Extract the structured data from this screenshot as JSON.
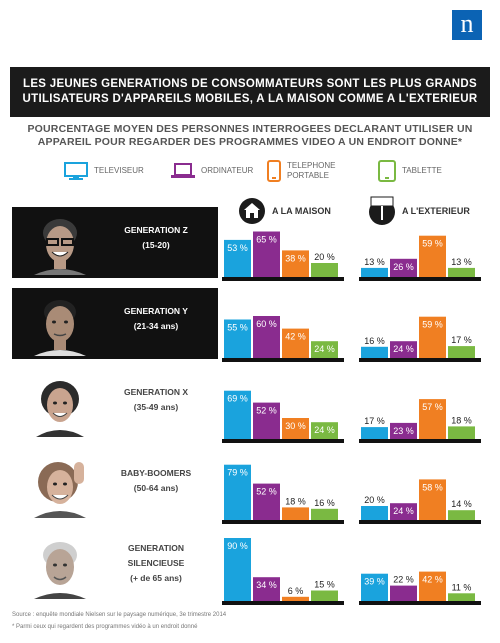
{
  "logo": "n",
  "banner": {
    "line1": "LES JEUNES GENERATIONS DE CONSOMMATEURS SONT LES PLUS GRANDS",
    "line2": "UTILISATEURS D'APPAREILS MOBILES, A LA MAISON COMME A L'EXTERIEUR"
  },
  "subtitle": {
    "line1": "POURCENTAGE MOYEN DES PERSONNES INTERROGEES DECLARANT UTILISER UN",
    "line2": "APPAREIL POUR REGARDER DES PROGRAMMES VIDEO A UN ENDROIT DONNE*"
  },
  "legend": {
    "tv": "TELEVISEUR",
    "computer": "ORDINATEUR",
    "phone_line1": "TELEPHONE",
    "phone_line2": "PORTABLE",
    "tablet": "TABLETTE"
  },
  "columns": {
    "home": "A LA MAISON",
    "outside": "A L'EXTERIEUR"
  },
  "generations": [
    {
      "name": "GENERATION Z",
      "ages": "(15-20)"
    },
    {
      "name": "GENERATION Y",
      "ages": "(21-34 ans)"
    },
    {
      "name": "GENERATION X",
      "ages": "(35-49 ans)"
    },
    {
      "name": "BABY-BOOMERS",
      "ages": "(50-64 ans)"
    },
    {
      "name_line1": "GENERATION",
      "name_line2": "SILENCIEUSE",
      "ages": "(+ de 65 ans)"
    }
  ],
  "footer": {
    "source": "Source : enquête mondiale Nielsen sur le paysage numérique, 3e trimestre 2014",
    "note": "* Parmi ceux qui regardent des programmes vidéo à un endroit donné"
  },
  "colors": {
    "tv": "#1aa3dd",
    "computer": "#8a2c8f",
    "phone": "#f07f22",
    "tablet": "#7ab942"
  },
  "chart_data": {
    "type": "bar",
    "categories": [
      "TELEVISEUR",
      "ORDINATEUR",
      "TELEPHONE PORTABLE",
      "TABLETTE"
    ],
    "groups": [
      "GENERATION Z",
      "GENERATION Y",
      "GENERATION X",
      "BABY-BOOMERS",
      "GENERATION SILENCIEUSE"
    ],
    "unit": "%",
    "home": [
      [
        53,
        65,
        38,
        20
      ],
      [
        55,
        60,
        42,
        24
      ],
      [
        69,
        52,
        30,
        24
      ],
      [
        79,
        52,
        18,
        16
      ],
      [
        90,
        34,
        6,
        15
      ]
    ],
    "outside": [
      [
        13,
        26,
        59,
        13
      ],
      [
        16,
        24,
        59,
        17
      ],
      [
        17,
        23,
        57,
        18
      ],
      [
        20,
        24,
        58,
        14
      ],
      [
        39,
        22,
        42,
        11
      ]
    ],
    "ylim": [
      0,
      100
    ]
  }
}
